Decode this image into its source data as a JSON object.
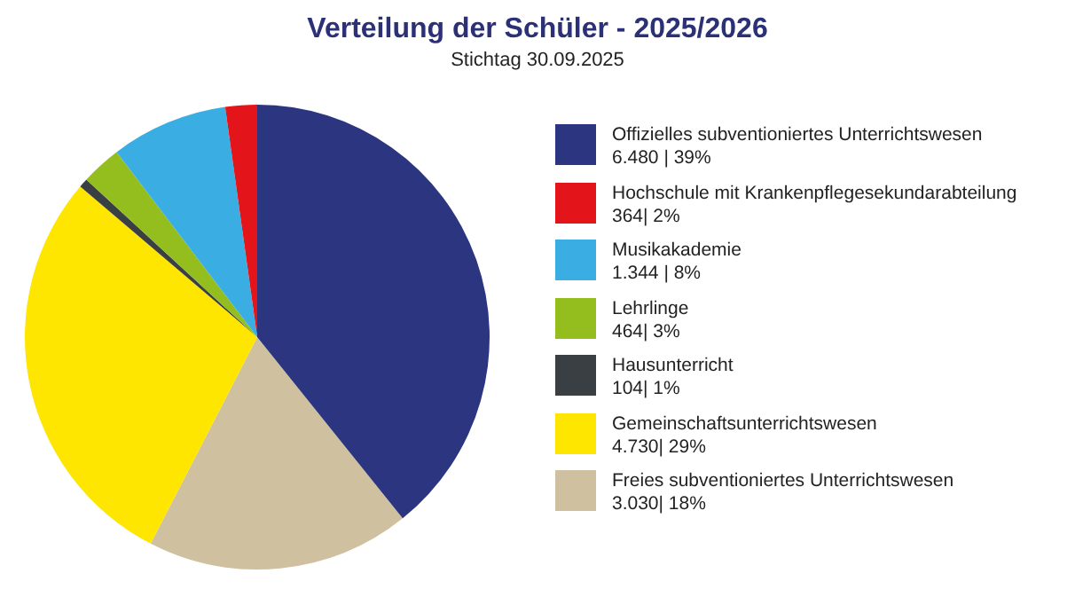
{
  "chart_data": {
    "type": "pie",
    "title": "Verteilung der Schüler - 2025/2026",
    "subtitle": "Stichtag 30.09.2025",
    "categories": [
      "Offizielles subventioniertes Unterrichtswesen",
      "Hochschule mit Krankenpflegesekundarabteilung",
      "Musikakademie",
      "Lehrlinge",
      "Hausunterricht",
      "Gemeinschaftsunterrichtswesen",
      "Freies subventioniertes Unterrichtswesen"
    ],
    "values": [
      6480,
      364,
      1344,
      464,
      104,
      4730,
      3030
    ],
    "value_labels": [
      "6.480 | 39%",
      "364| 2%",
      "1.344 | 8%",
      "464| 3%",
      "104| 1%",
      "4.730| 29%",
      "3.030| 18%"
    ],
    "colors": [
      "#2b3580",
      "#e3151b",
      "#3aaee3",
      "#93be1e",
      "#3a3f44",
      "#ffe600",
      "#cfc0a0"
    ],
    "legend": "right"
  }
}
